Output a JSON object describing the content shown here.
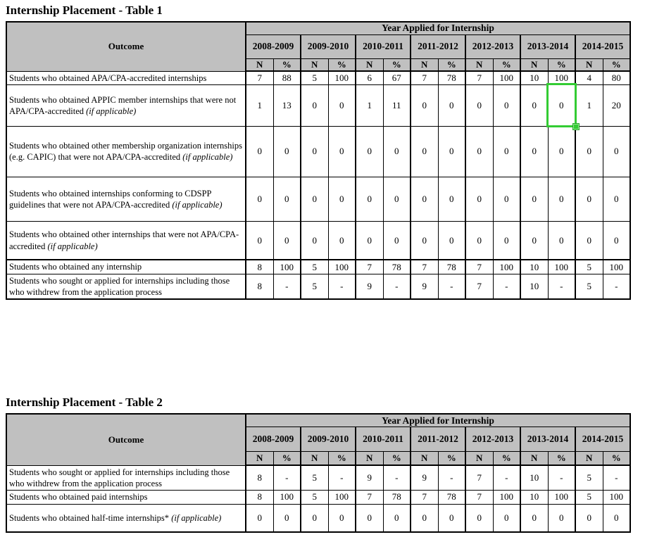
{
  "colors": {
    "header_bg": "#c0c0c0",
    "border": "#000000",
    "highlight": "#33cc33"
  },
  "highlight": {
    "table": 0,
    "row": 1,
    "col": 11
  },
  "tables": [
    {
      "title": "Internship Placement - Table 1",
      "header": {
        "outcome_label": "Outcome",
        "year_group_label": "Year Applied for Internship",
        "years": [
          "2008-2009",
          "2009-2010",
          "2010-2011",
          "2011-2012",
          "2012-2013",
          "2013-2014",
          "2014-2015"
        ],
        "subcols": [
          "N",
          "%"
        ]
      },
      "rows": [
        {
          "outcome": "Students who obtained APA/CPA-accredited internships",
          "italic": "",
          "values": [
            "7",
            "88",
            "5",
            "100",
            "6",
            "67",
            "7",
            "78",
            "7",
            "100",
            "10",
            "100",
            "4",
            "80"
          ]
        },
        {
          "outcome": "Students who obtained APPIC member internships that were not APA/CPA-accredited",
          "italic": "(if applicable)",
          "values": [
            "1",
            "13",
            "0",
            "0",
            "1",
            "11",
            "0",
            "0",
            "0",
            "0",
            "0",
            "0",
            "1",
            "20"
          ]
        },
        {
          "outcome": "Students who obtained other membership organization internships (e.g. CAPIC) that were not APA/CPA-accredited",
          "italic": "(if applicable)",
          "values": [
            "0",
            "0",
            "0",
            "0",
            "0",
            "0",
            "0",
            "0",
            "0",
            "0",
            "0",
            "0",
            "0",
            "0"
          ]
        },
        {
          "outcome": "Students who obtained  internships conforming to CDSPP guidelines that were not APA/CPA-accredited",
          "italic": "(if applicable)",
          "values": [
            "0",
            "0",
            "0",
            "0",
            "0",
            "0",
            "0",
            "0",
            "0",
            "0",
            "0",
            "0",
            "0",
            "0"
          ]
        },
        {
          "outcome": "Students who obtained other internships that were not APA/CPA-accredited",
          "italic": "(if applicable)",
          "values": [
            "0",
            "0",
            "0",
            "0",
            "0",
            "0",
            "0",
            "0",
            "0",
            "0",
            "0",
            "0",
            "0",
            "0"
          ]
        },
        {
          "outcome": "Students who obtained any internship",
          "italic": "",
          "values": [
            "8",
            "100",
            "5",
            "100",
            "7",
            "78",
            "7",
            "78",
            "7",
            "100",
            "10",
            "100",
            "5",
            "100"
          ]
        },
        {
          "outcome": "Students who sought or applied for internships including those who withdrew from the application process",
          "italic": "",
          "values": [
            "8",
            "-",
            "5",
            "-",
            "9",
            "-",
            "9",
            "-",
            "7",
            "-",
            "10",
            "-",
            "5",
            "-"
          ]
        }
      ]
    },
    {
      "title": "Internship Placement - Table 2",
      "header": {
        "outcome_label": "Outcome",
        "year_group_label": "Year Applied for Internship",
        "years": [
          "2008-2009",
          "2009-2010",
          "2010-2011",
          "2011-2012",
          "2012-2013",
          "2013-2014",
          "2014-2015"
        ],
        "subcols": [
          "N",
          "%"
        ]
      },
      "rows": [
        {
          "outcome": "Students who sought or applied for internships including those who withdrew from the application process",
          "italic": "",
          "values": [
            "8",
            "-",
            "5",
            "-",
            "9",
            "-",
            "9",
            "-",
            "7",
            "-",
            "10",
            "-",
            "5",
            "-"
          ]
        },
        {
          "outcome": "Students who obtained paid internships",
          "italic": "",
          "values": [
            "8",
            "100",
            "5",
            "100",
            "7",
            "78",
            "7",
            "78",
            "7",
            "100",
            "10",
            "100",
            "5",
            "100"
          ]
        },
        {
          "outcome": "Students who obtained half-time internships*",
          "italic": "(if applicable)",
          "values": [
            "0",
            "0",
            "0",
            "0",
            "0",
            "0",
            "0",
            "0",
            "0",
            "0",
            "0",
            "0",
            "0",
            "0"
          ]
        }
      ]
    }
  ]
}
